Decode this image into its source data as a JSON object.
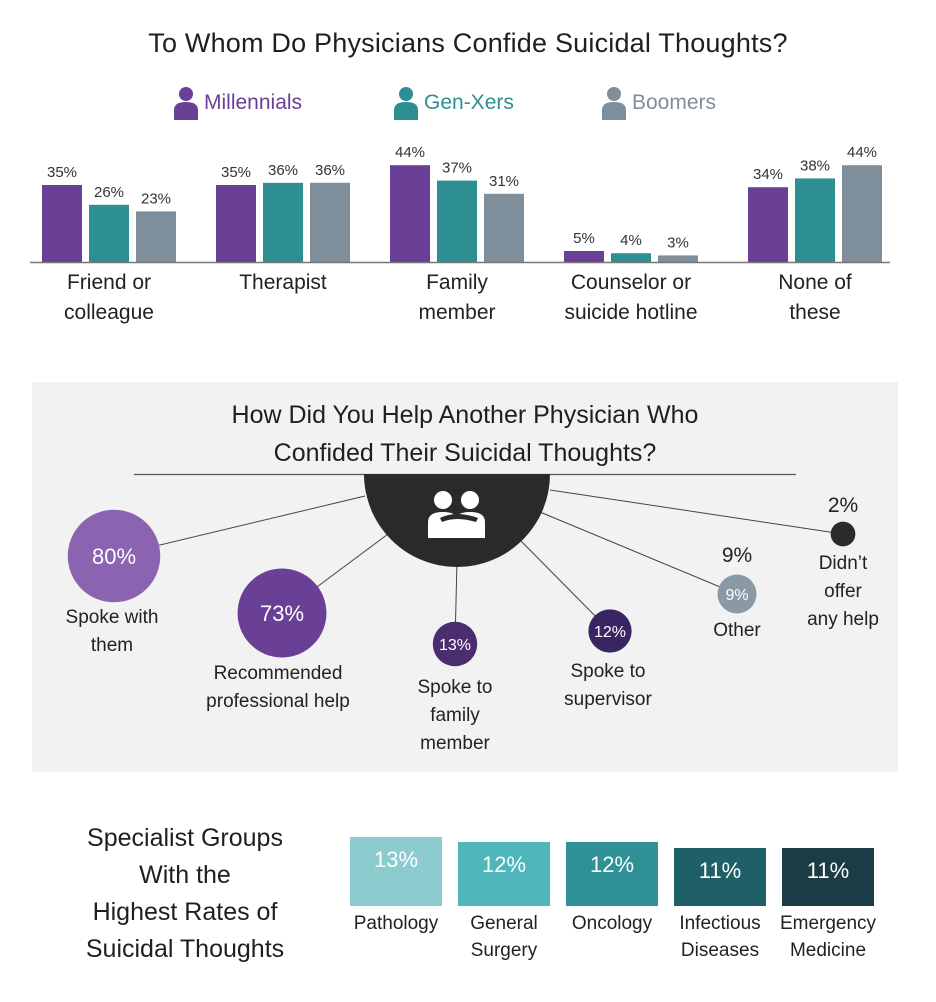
{
  "chart_data": [
    {
      "type": "bar",
      "title": "To Whom Do Physicians Confide Suicidal Thoughts?",
      "categories": [
        "Friend or colleague",
        "Therapist",
        "Family member",
        "Counselor or suicide hotline",
        "None of these"
      ],
      "category_lines": [
        [
          "Friend or",
          "colleague"
        ],
        [
          "Therapist"
        ],
        [
          "Family",
          "member"
        ],
        [
          "Counselor or",
          "suicide hotline"
        ],
        [
          "None of",
          "these"
        ]
      ],
      "series": [
        {
          "name": "Millennials",
          "values": [
            35,
            35,
            44,
            5,
            34
          ],
          "color": "#6a3f96"
        },
        {
          "name": "Gen-Xers",
          "values": [
            26,
            36,
            37,
            4,
            38
          ],
          "color": "#2e8f93"
        },
        {
          "name": "Boomers",
          "values": [
            23,
            36,
            31,
            3,
            44
          ],
          "color": "#7e8f9b"
        }
      ],
      "value_suffix": "%",
      "legend": "top",
      "grid": false
    },
    {
      "type": "bubble",
      "title": "How Did You Help Another Physician Who Confided Their Suicidal Thoughts?",
      "title_lines": [
        "How Did You Help Another Physician Who",
        "Confided Their Suicidal Thoughts?"
      ],
      "center_icon": "people-embrace-icon",
      "items": [
        {
          "label": "Spoke with them",
          "lines": [
            "Spoke with",
            "them"
          ],
          "value": 80,
          "value_text": "80%",
          "color": "#8a63b1"
        },
        {
          "label": "Recommended professional help",
          "lines": [
            "Recommended",
            "professional help"
          ],
          "value": 73,
          "value_text": "73%",
          "color": "#6a3f96"
        },
        {
          "label": "Spoke to family member",
          "lines": [
            "Spoke to",
            "family",
            "member"
          ],
          "value": 13,
          "value_text": "13%",
          "color": "#4a2e70"
        },
        {
          "label": "Spoke to supervisor",
          "lines": [
            "Spoke to",
            "supervisor"
          ],
          "value": 12,
          "value_text": "12%",
          "color": "#3a2563"
        },
        {
          "label": "Other",
          "lines": [
            "Other"
          ],
          "value": 9,
          "value_text": "9%",
          "color": "#8a9aa4"
        },
        {
          "label": "Didn't offer any help",
          "lines": [
            "Didn’t",
            "offer",
            "any help"
          ],
          "value": 2,
          "value_text": "2%",
          "color": "#2b2b2b"
        }
      ]
    },
    {
      "type": "bar",
      "title": "Specialist Groups With the Highest Rates of Suicidal Thoughts",
      "title_lines": [
        "Specialist Groups",
        "With the",
        "Highest Rates of",
        "Suicidal Thoughts"
      ],
      "categories": [
        "Pathology",
        "General Surgery",
        "Oncology",
        "Infectious Diseases",
        "Emergency Medicine"
      ],
      "category_lines": [
        [
          "Pathology"
        ],
        [
          "General",
          "Surgery"
        ],
        [
          "Oncology"
        ],
        [
          "Infectious",
          "Diseases"
        ],
        [
          "Emergency",
          "Medicine"
        ]
      ],
      "values": [
        13,
        12,
        12,
        11,
        11
      ],
      "value_labels": [
        "13%",
        "12%",
        "12%",
        "11%",
        "11%"
      ],
      "colors": [
        "#8ccccf",
        "#4fb6bb",
        "#2f9196",
        "#1f5f67",
        "#1b3c45"
      ]
    }
  ]
}
